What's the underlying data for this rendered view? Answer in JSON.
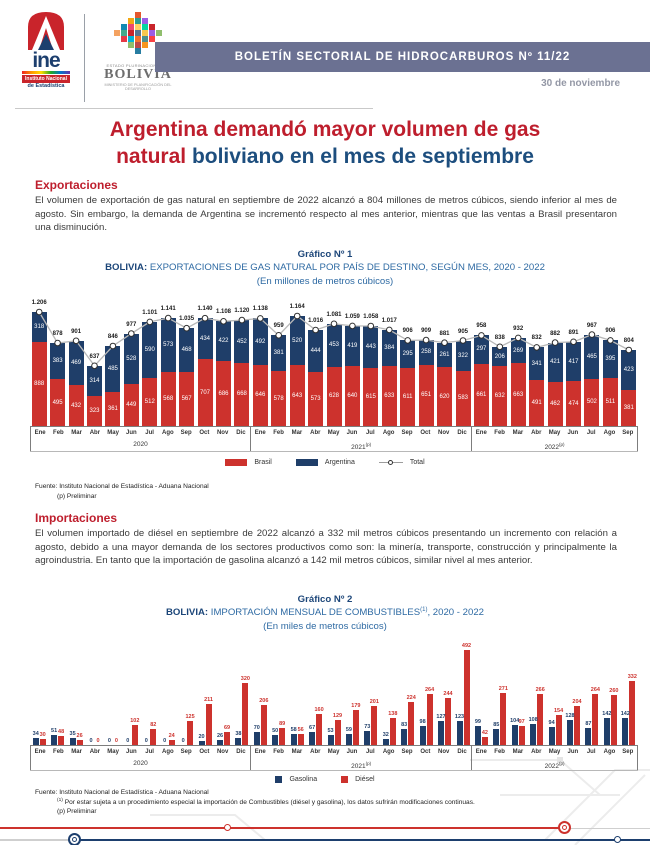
{
  "header": {
    "banner_title": "BOLETÍN SECTORIAL DE HIDROCARBUROS Nº 11/22",
    "date": "30 de noviembre",
    "ine_logo": {
      "word": "ine",
      "caption_line1": "Instituto Nacional",
      "caption_line2": "de Estadística"
    },
    "bolivia_logo": {
      "top": "ESTADO PLURINACIONAL DE",
      "name": "BOLIVIA",
      "bottom": "MINISTERIO DE PLANIFICACIÓN DEL DESARROLLO"
    }
  },
  "title": {
    "line1": "Argentina demandó mayor volumen de gas",
    "line2_red": "natural",
    "line2_rest": " boliviano en el mes de septiembre"
  },
  "sections": {
    "exportaciones": {
      "heading": "Exportaciones",
      "body": "El volumen de exportación de gas natural en septiembre de 2022 alcanzó a 804 millones de metros cúbicos, siendo inferior al mes de agosto. Sin embargo, la demanda de Argentina se incrementó respecto al mes anterior, mientras que las ventas a Brasil presentaron una disminución."
    },
    "importaciones": {
      "heading": "Importaciones",
      "body": "El volumen importado de diésel en septiembre de 2022 alcanzó a 332 mil metros cúbicos presentando un incremento con relación a agosto, debido a una mayor demanda de los sectores productivos como son: la minería, transporte, construcción y principalmente la agroindustria. En tanto que la importación de gasolina alcanzó a 142 mil metros cúbicos, similar nivel al mes anterior."
    }
  },
  "chart_data": [
    {
      "type": "bar",
      "variant": "stacked-with-total-line",
      "title": "Gráfico Nº 1",
      "subtitle_prefix": "BOLIVIA:",
      "subtitle_rest": " EXPORTACIONES DE GAS NATURAL POR PAÍS DE DESTINO, SEGÚN MES, 2020 - 2022",
      "subtitle_sup": "",
      "subtitle_tail": "",
      "unit_line": "(En millones de metros cúbicos)",
      "month_names": [
        "Ene",
        "Feb",
        "Mar",
        "Abr",
        "May",
        "Jun",
        "Jul",
        "Ago",
        "Sep",
        "Oct",
        "Nov",
        "Dic"
      ],
      "year_groups": [
        {
          "label": "2020",
          "sup": "",
          "n_months": 12
        },
        {
          "label": "2021",
          "sup": "(p)",
          "n_months": 12
        },
        {
          "label": "2022",
          "sup": "(p)",
          "n_months": 9
        }
      ],
      "series": [
        {
          "name": "Brasil",
          "color": "#cd322d",
          "values": [
            888,
            495,
            432,
            323,
            361,
            449,
            512,
            568,
            567,
            707,
            686,
            668,
            646,
            578,
            643,
            573,
            628,
            640,
            615,
            633,
            611,
            651,
            620,
            583,
            661,
            632,
            663,
            491,
            462,
            474,
            502,
            511,
            381
          ]
        },
        {
          "name": "Argentina",
          "color": "#1f3e69",
          "values": [
            318,
            383,
            469,
            314,
            485,
            528,
            590,
            573,
            468,
            434,
            422,
            452,
            492,
            381,
            520,
            444,
            453,
            419,
            443,
            384,
            295,
            258,
            261,
            322,
            297,
            206,
            269,
            341,
            421,
            417,
            465,
            395,
            423
          ]
        }
      ],
      "totals": [
        1206,
        878,
        901,
        637,
        846,
        977,
        1101,
        1141,
        1035,
        1140,
        1108,
        1120,
        1138,
        959,
        1164,
        1016,
        1081,
        1059,
        1058,
        1017,
        906,
        909,
        881,
        905,
        958,
        838,
        932,
        832,
        882,
        891,
        967,
        906,
        804
      ],
      "legend_total_label": "Total",
      "ylim": [
        0,
        1250
      ],
      "source": "Fuente: Instituto Nacional de Estadística - Aduana Nacional",
      "note_p": "(p) Preliminar"
    },
    {
      "type": "bar",
      "variant": "grouped",
      "title": "Gráfico Nº 2",
      "subtitle_prefix": "BOLIVIA:",
      "subtitle_rest": " IMPORTACIÓN MENSUAL DE COMBUSTIBLES",
      "subtitle_sup": "(1)",
      "subtitle_tail": ", 2020 - 2022",
      "unit_line": "(En miles de metros cúbicos)",
      "month_names": [
        "Ene",
        "Feb",
        "Mar",
        "Abr",
        "May",
        "Jun",
        "Jul",
        "Ago",
        "Sep",
        "Oct",
        "Nov",
        "Dic"
      ],
      "year_groups": [
        {
          "label": "2020",
          "sup": "",
          "n_months": 12
        },
        {
          "label": "2021",
          "sup": "(p)",
          "n_months": 12
        },
        {
          "label": "2022",
          "sup": "(p)",
          "n_months": 9
        }
      ],
      "series": [
        {
          "name": "Gasolina",
          "color": "#1f3e69",
          "values": [
            34,
            51,
            35,
            0,
            0,
            0,
            0,
            0,
            0,
            20,
            26,
            38,
            70,
            50,
            58,
            67,
            53,
            59,
            73,
            32,
            83,
            98,
            127,
            123,
            99,
            85,
            104,
            108,
            94,
            128,
            87,
            142,
            142
          ]
        },
        {
          "name": "Diésel",
          "color": "#cd322d",
          "values": [
            30,
            48,
            26,
            0,
            0,
            102,
            82,
            24,
            125,
            211,
            69,
            320,
            206,
            89,
            56,
            160,
            129,
            179,
            201,
            138,
            224,
            264,
            244,
            492,
            42,
            271,
            97,
            266,
            154,
            204,
            264,
            260,
            332
          ]
        }
      ],
      "ylim": [
        0,
        520
      ],
      "source": "Fuente: Instituto Nacional de Estadística - Aduana Nacional",
      "footnote_sup": "(1)",
      "footnote_text": " Por estar sujeta a un procedimiento especial la importación de Combustibles (diésel y gasolina), los datos sufrirán modificaciones continuas.",
      "note_p": "(p) Preliminar"
    }
  ]
}
